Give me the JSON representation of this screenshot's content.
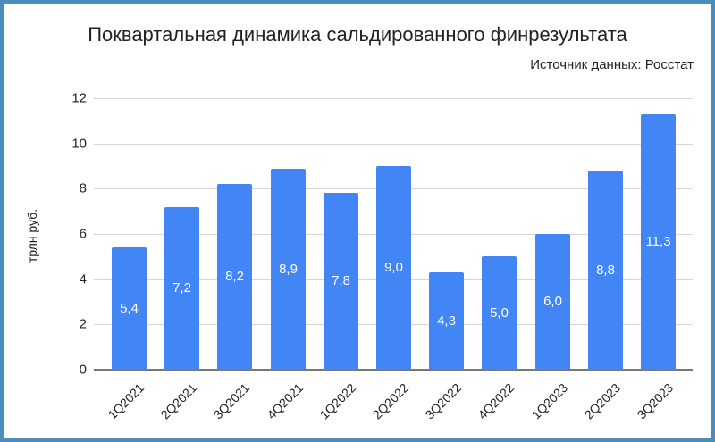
{
  "chart_data": {
    "type": "bar",
    "title": "Поквартальная динамика сальдированного финрезультата",
    "subtitle": "Источник данных: Росстат",
    "xlabel": "",
    "ylabel": "трлн руб.",
    "ylim": [
      0,
      12
    ],
    "yticks": [
      "0",
      "2",
      "4",
      "6",
      "8",
      "10",
      "12"
    ],
    "grid": true,
    "legend": "none",
    "bar_color": "#4285f4",
    "categories": [
      "1Q2021",
      "2Q2021",
      "3Q2021",
      "4Q2021",
      "1Q2022",
      "2Q2022",
      "3Q2022",
      "4Q2022",
      "1Q2023",
      "2Q2023",
      "3Q2023"
    ],
    "values": [
      5.4,
      7.2,
      8.2,
      8.9,
      7.8,
      9.0,
      4.3,
      5.0,
      6.0,
      8.8,
      11.3
    ],
    "data_labels": [
      "5,4",
      "7,2",
      "8,2",
      "8,9",
      "7,8",
      "9,0",
      "4,3",
      "5,0",
      "6,0",
      "8,8",
      "11,3"
    ]
  },
  "frame_color": "#4a8dba"
}
